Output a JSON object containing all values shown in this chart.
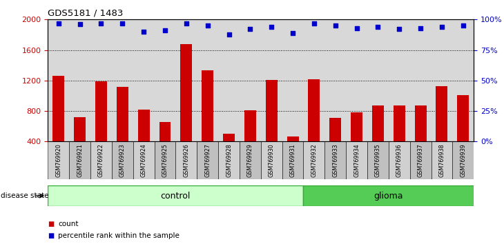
{
  "title": "GDS5181 / 1483",
  "samples": [
    "GSM769920",
    "GSM769921",
    "GSM769922",
    "GSM769923",
    "GSM769924",
    "GSM769925",
    "GSM769926",
    "GSM769927",
    "GSM769928",
    "GSM769929",
    "GSM769930",
    "GSM769931",
    "GSM769932",
    "GSM769933",
    "GSM769934",
    "GSM769935",
    "GSM769936",
    "GSM769937",
    "GSM769938",
    "GSM769939"
  ],
  "bar_values": [
    1260,
    720,
    1190,
    1120,
    820,
    660,
    1680,
    1330,
    500,
    810,
    1210,
    470,
    1220,
    710,
    780,
    870,
    870,
    870,
    1130,
    1010
  ],
  "percentile_values": [
    97,
    96,
    97,
    97,
    90,
    91,
    97,
    95,
    88,
    92,
    94,
    89,
    97,
    95,
    93,
    94,
    92,
    93,
    94,
    95
  ],
  "bar_color": "#cc0000",
  "dot_color": "#0000cc",
  "y_min": 400,
  "y_max": 2000,
  "yticks_left": [
    400,
    800,
    1200,
    1600,
    2000
  ],
  "yticks_right": [
    0,
    25,
    50,
    75,
    100
  ],
  "grid_lines": [
    800,
    1200,
    1600
  ],
  "num_control": 12,
  "plot_bg": "#d8d8d8",
  "xtick_bg_light": "#d0d0d0",
  "xtick_bg_dark": "#c0c0c0",
  "control_color": "#ccffcc",
  "glioma_color": "#55cc55",
  "control_label": "control",
  "glioma_label": "glioma",
  "disease_state_label": "disease state",
  "legend_count": "count",
  "legend_pct": "percentile rank within the sample"
}
